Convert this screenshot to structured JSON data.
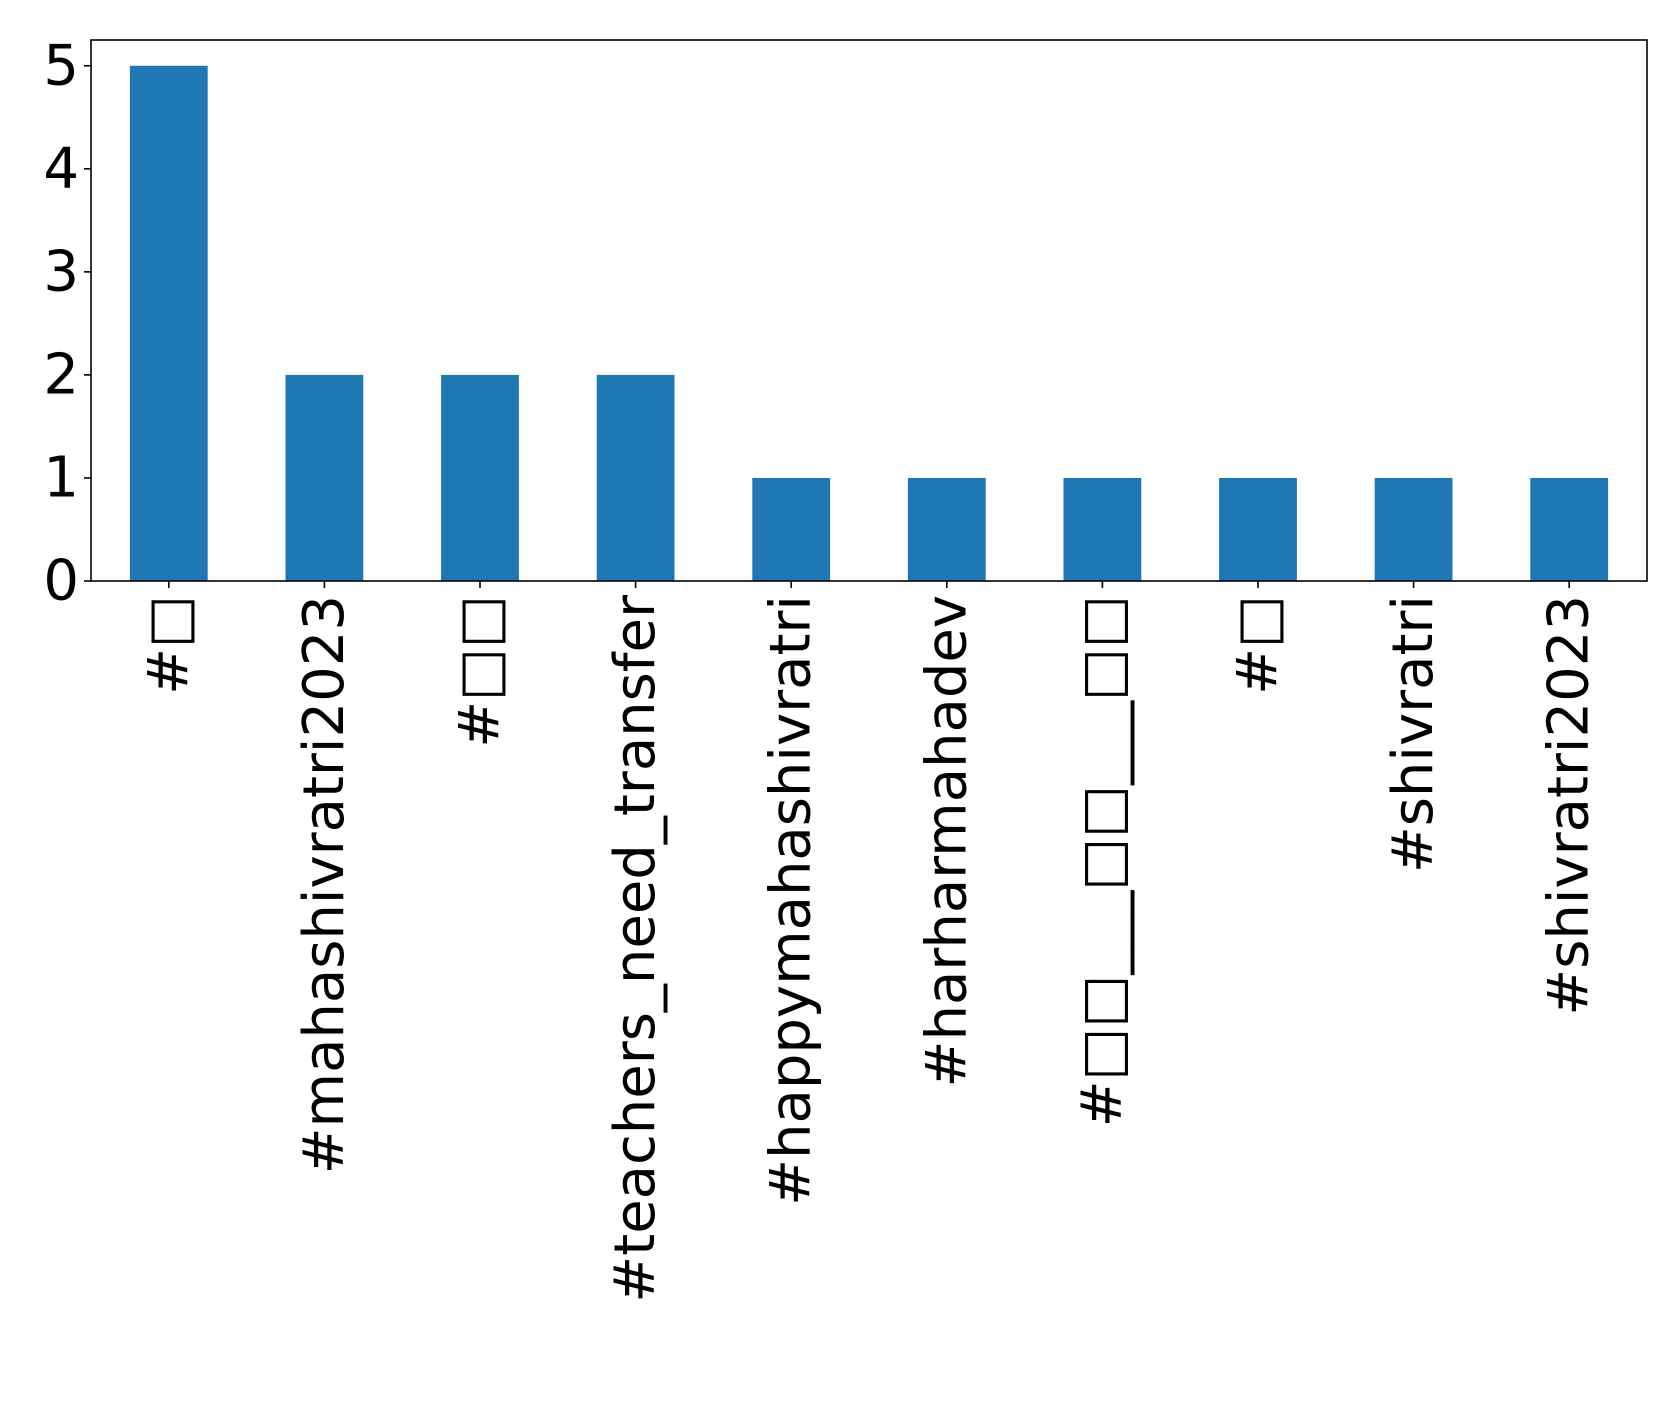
{
  "chart_data": {
    "type": "bar",
    "categories": [
      "#□",
      "#mahashivratri2023",
      "#□□",
      "#teachers_need_transfer",
      "#happymahashivratri",
      "#harharmahadev",
      "#□□___□□___□□",
      "#□",
      "#shivratri",
      "#shivratri2023"
    ],
    "values": [
      5,
      2,
      2,
      2,
      1,
      1,
      1,
      1,
      1,
      1
    ],
    "yticks": [
      "0",
      "1",
      "2",
      "3",
      "4",
      "5"
    ],
    "ylim": [
      0,
      5.25
    ],
    "title": "",
    "xlabel": "",
    "ylabel": "",
    "grid": false,
    "bar_color": "#1f77b4"
  }
}
